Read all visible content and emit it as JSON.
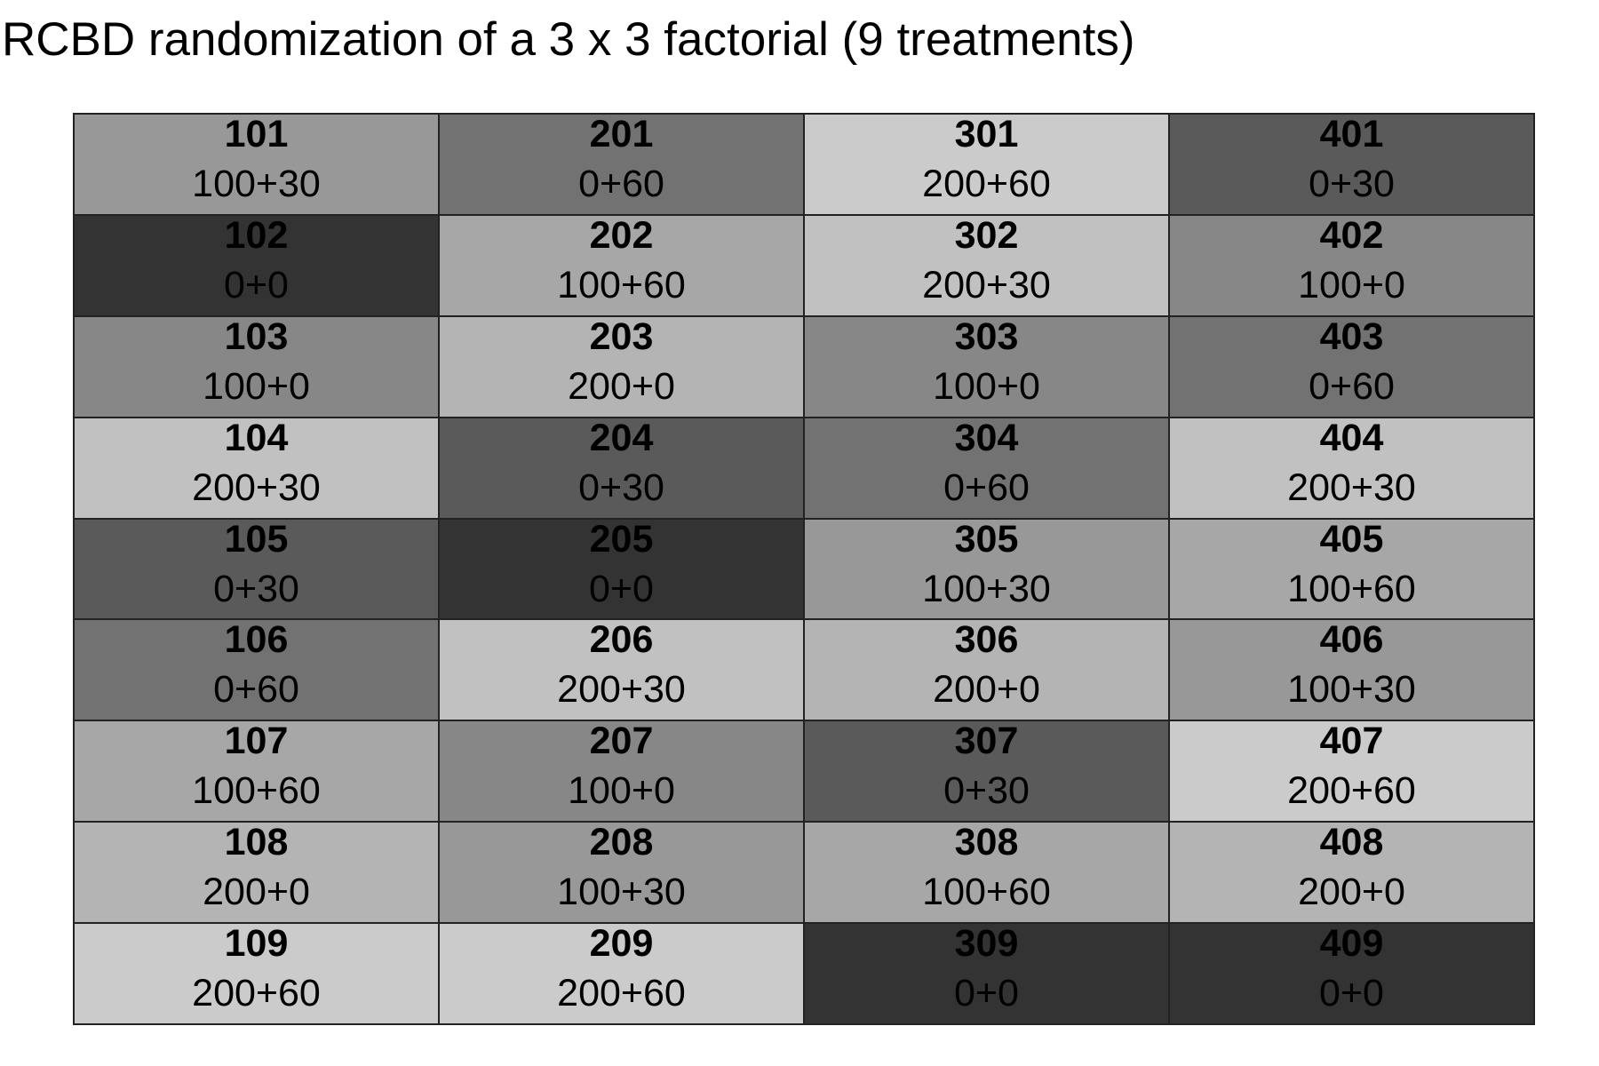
{
  "title": "RCBD randomization of a 3 x 3 factorial (9 treatments)",
  "treatment_colors": {
    "0+0": "#333333",
    "0+30": "#5a5a5a",
    "0+60": "#727272",
    "100+0": "#878787",
    "100+30": "#989898",
    "100+60": "#a7a7a7",
    "200+0": "#b4b4b4",
    "200+30": "#c1c1c1",
    "200+60": "#cbcbcb"
  },
  "blocks": [
    {
      "plots": [
        {
          "id": "101",
          "treatment": "100+30"
        },
        {
          "id": "102",
          "treatment": "0+0"
        },
        {
          "id": "103",
          "treatment": "100+0"
        },
        {
          "id": "104",
          "treatment": "200+30"
        },
        {
          "id": "105",
          "treatment": "0+30"
        },
        {
          "id": "106",
          "treatment": "0+60"
        },
        {
          "id": "107",
          "treatment": "100+60"
        },
        {
          "id": "108",
          "treatment": "200+0"
        },
        {
          "id": "109",
          "treatment": "200+60"
        }
      ]
    },
    {
      "plots": [
        {
          "id": "201",
          "treatment": "0+60"
        },
        {
          "id": "202",
          "treatment": "100+60"
        },
        {
          "id": "203",
          "treatment": "200+0"
        },
        {
          "id": "204",
          "treatment": "0+30"
        },
        {
          "id": "205",
          "treatment": "0+0"
        },
        {
          "id": "206",
          "treatment": "200+30"
        },
        {
          "id": "207",
          "treatment": "100+0"
        },
        {
          "id": "208",
          "treatment": "100+30"
        },
        {
          "id": "209",
          "treatment": "200+60"
        }
      ]
    },
    {
      "plots": [
        {
          "id": "301",
          "treatment": "200+60"
        },
        {
          "id": "302",
          "treatment": "200+30"
        },
        {
          "id": "303",
          "treatment": "100+0"
        },
        {
          "id": "304",
          "treatment": "0+60"
        },
        {
          "id": "305",
          "treatment": "100+30"
        },
        {
          "id": "306",
          "treatment": "200+0"
        },
        {
          "id": "307",
          "treatment": "0+30"
        },
        {
          "id": "308",
          "treatment": "100+60"
        },
        {
          "id": "309",
          "treatment": "0+0"
        }
      ]
    },
    {
      "plots": [
        {
          "id": "401",
          "treatment": "0+30"
        },
        {
          "id": "402",
          "treatment": "100+0"
        },
        {
          "id": "403",
          "treatment": "0+60"
        },
        {
          "id": "404",
          "treatment": "200+30"
        },
        {
          "id": "405",
          "treatment": "100+60"
        },
        {
          "id": "406",
          "treatment": "100+30"
        },
        {
          "id": "407",
          "treatment": "200+60"
        },
        {
          "id": "408",
          "treatment": "200+0"
        },
        {
          "id": "409",
          "treatment": "0+0"
        }
      ]
    }
  ]
}
